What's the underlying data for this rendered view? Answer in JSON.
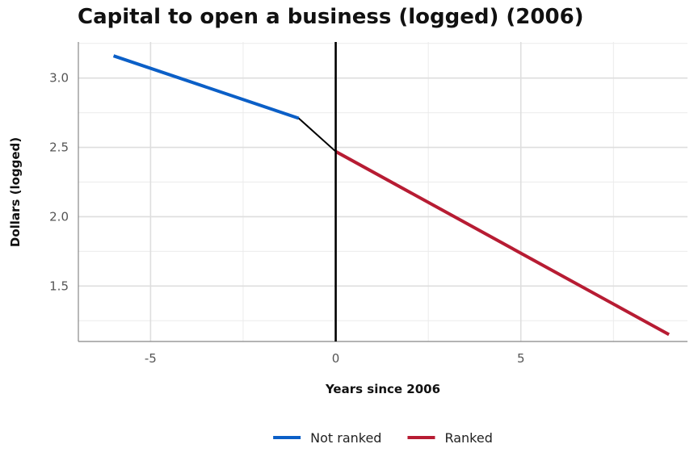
{
  "chart_data": {
    "type": "line",
    "title": "Capital to open a business (logged) (2006)",
    "xlabel": "Years since 2006",
    "ylabel": "Dollars (logged)",
    "xlim": [
      -6.95,
      9.5
    ],
    "ylim": [
      1.1,
      3.26
    ],
    "x_ticks": [
      -5,
      0,
      5
    ],
    "x_tick_labels": [
      "-5",
      "0",
      "5"
    ],
    "y_ticks": [
      1.5,
      2.0,
      2.5,
      3.0
    ],
    "y_tick_labels": [
      "1.5",
      "2.0",
      "2.5",
      "3.0"
    ],
    "grid": true,
    "legend_position": "bottom",
    "series": [
      {
        "name": "Not ranked",
        "color": "#0b5fc7",
        "x": [
          -6,
          -1
        ],
        "y": [
          3.16,
          2.71
        ]
      },
      {
        "name": "Ranked",
        "color": "#b71c33",
        "x": [
          0,
          9
        ],
        "y": [
          2.47,
          1.15
        ]
      }
    ],
    "connector": {
      "color": "#000000",
      "x": [
        -1,
        0
      ],
      "y": [
        2.71,
        2.47
      ]
    },
    "reference_line": {
      "x": 0,
      "color": "#000000"
    }
  }
}
